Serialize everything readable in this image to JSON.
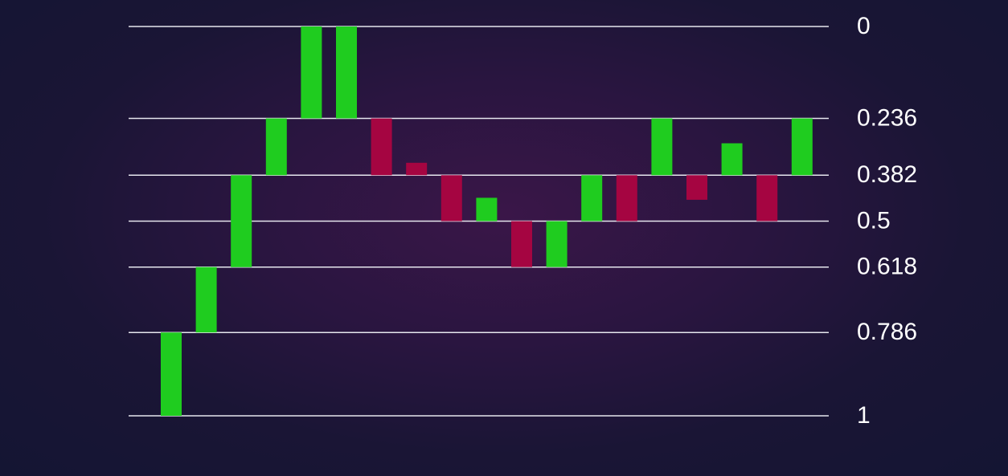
{
  "chart_data": {
    "type": "bar",
    "title": "",
    "xlabel": "",
    "ylabel": "",
    "y_axis": "inverted",
    "ylim": [
      0,
      1
    ],
    "grid": "horizontal-levels",
    "levels": [
      0,
      0.236,
      0.382,
      0.5,
      0.618,
      0.786,
      1
    ],
    "level_labels": [
      "0",
      "0.236",
      "0.382",
      "0.5",
      "0.618",
      "0.786",
      "1"
    ],
    "colors": {
      "up": "#1fcc1f",
      "down": "#a50541",
      "level_line": "#e6e6ee",
      "label": "#ffffff"
    },
    "bars": [
      {
        "from": 1.0,
        "to": 0.786,
        "direction": "up"
      },
      {
        "from": 0.786,
        "to": 0.618,
        "direction": "up"
      },
      {
        "from": 0.618,
        "to": 0.382,
        "direction": "up"
      },
      {
        "from": 0.382,
        "to": 0.236,
        "direction": "up"
      },
      {
        "from": 0.236,
        "to": 0.0,
        "direction": "up"
      },
      {
        "from": 0.236,
        "to": 0.0,
        "direction": "up"
      },
      {
        "from": 0.236,
        "to": 0.382,
        "direction": "down"
      },
      {
        "from": 0.35,
        "to": 0.382,
        "direction": "down"
      },
      {
        "from": 0.382,
        "to": 0.5,
        "direction": "down"
      },
      {
        "from": 0.5,
        "to": 0.44,
        "direction": "up"
      },
      {
        "from": 0.5,
        "to": 0.618,
        "direction": "down"
      },
      {
        "from": 0.618,
        "to": 0.5,
        "direction": "up"
      },
      {
        "from": 0.5,
        "to": 0.382,
        "direction": "up"
      },
      {
        "from": 0.382,
        "to": 0.5,
        "direction": "down"
      },
      {
        "from": 0.382,
        "to": 0.236,
        "direction": "up"
      },
      {
        "from": 0.382,
        "to": 0.445,
        "direction": "down"
      },
      {
        "from": 0.382,
        "to": 0.3,
        "direction": "up"
      },
      {
        "from": 0.382,
        "to": 0.5,
        "direction": "down"
      },
      {
        "from": 0.382,
        "to": 0.236,
        "direction": "up"
      }
    ]
  }
}
